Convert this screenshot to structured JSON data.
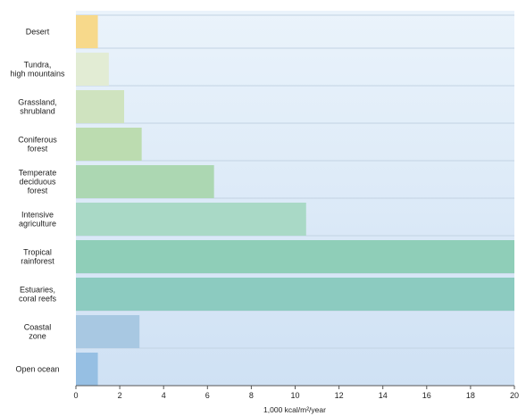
{
  "chart_data": {
    "type": "bar",
    "orientation": "horizontal",
    "categories": [
      [
        "Desert"
      ],
      [
        "Tundra,",
        "high mountains"
      ],
      [
        "Grassland,",
        "shrubland"
      ],
      [
        "Coniferous",
        "forest"
      ],
      [
        "Temperate",
        "deciduous",
        "forest"
      ],
      [
        "Intensive",
        "agriculture"
      ],
      [
        "Tropical",
        "rainforest"
      ],
      [
        "Estuaries,",
        "coral reefs"
      ],
      [
        "Coastal",
        "zone"
      ],
      [
        "Open ocean"
      ]
    ],
    "values": [
      1.0,
      1.5,
      2.2,
      3.0,
      6.3,
      10.5,
      20.0,
      20.0,
      2.9,
      1.0
    ],
    "bar_colors": [
      "#f7d98b",
      "#e2ecd4",
      "#cfe3bf",
      "#bcdcb0",
      "#acd7b2",
      "#a9d9c6",
      "#8fceb8",
      "#8ccbc0",
      "#a8c8e2",
      "#96bfe3"
    ],
    "xlabel": "1,000 kcal/m²/year",
    "xlim": [
      0,
      20
    ],
    "xticks": [
      "0",
      "2",
      "4",
      "6",
      "8",
      "10",
      "12",
      "14",
      "16",
      "18",
      "20"
    ],
    "grid": true,
    "plot_background": [
      "#eaf3fb",
      "#cfe1f4"
    ]
  }
}
